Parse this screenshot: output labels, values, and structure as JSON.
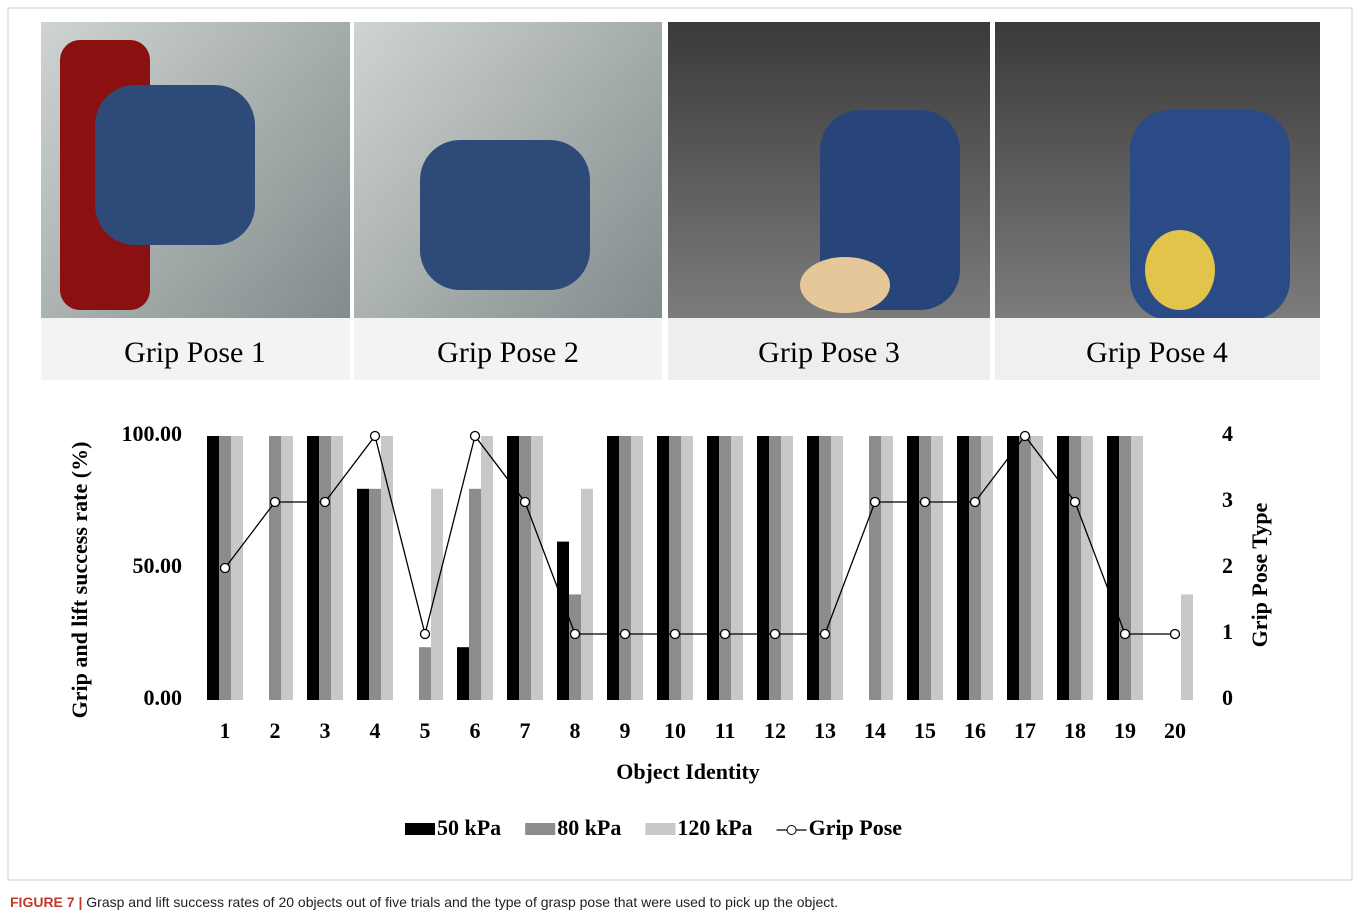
{
  "photos": [
    {
      "caption": "Grip Pose 1"
    },
    {
      "caption": "Grip Pose 2"
    },
    {
      "caption": "Grip Pose 3"
    },
    {
      "caption": "Grip Pose 4"
    }
  ],
  "chart_data": {
    "type": "bar",
    "x_label": "Object Identity",
    "y_label": "Grip and lift success rate (%)",
    "y2_label": "Grip Pose Type",
    "categories": [
      "1",
      "2",
      "3",
      "4",
      "5",
      "6",
      "7",
      "8",
      "9",
      "10",
      "11",
      "12",
      "13",
      "14",
      "15",
      "16",
      "17",
      "18",
      "19",
      "20"
    ],
    "series": [
      {
        "name": "50 kPa",
        "color": "#000000",
        "values": [
          100,
          0,
          100,
          80,
          0,
          20,
          100,
          60,
          100,
          100,
          100,
          100,
          100,
          0,
          100,
          100,
          100,
          100,
          100,
          0
        ]
      },
      {
        "name": "80 kPa",
        "color": "#8c8c8c",
        "values": [
          100,
          100,
          100,
          80,
          20,
          80,
          100,
          40,
          100,
          100,
          100,
          100,
          100,
          100,
          100,
          100,
          100,
          100,
          100,
          0
        ]
      },
      {
        "name": "120 kPa",
        "color": "#c8c8c8",
        "values": [
          100,
          100,
          100,
          100,
          80,
          100,
          100,
          80,
          100,
          100,
          100,
          100,
          100,
          100,
          100,
          100,
          100,
          100,
          100,
          40
        ]
      },
      {
        "name": "Grip Pose",
        "color": "#000000",
        "type": "line",
        "axis": "y2",
        "values": [
          2,
          3,
          3,
          4,
          1,
          4,
          3,
          1,
          1,
          1,
          1,
          1,
          1,
          3,
          3,
          3,
          4,
          3,
          1,
          1
        ]
      }
    ],
    "ylim": [
      0,
      100
    ],
    "yticks": [
      {
        "value": 0,
        "label": "0.00"
      },
      {
        "value": 50,
        "label": "50.00"
      },
      {
        "value": 100,
        "label": "100.00"
      }
    ],
    "y2lim": [
      0,
      4
    ],
    "y2ticks": [
      0,
      1,
      2,
      3,
      4
    ]
  },
  "caption": {
    "label": "FIGURE 7 |",
    "text": "Grasp and lift success rates of 20 objects out of five trials and the type of grasp pose that were used to pick up the object."
  }
}
